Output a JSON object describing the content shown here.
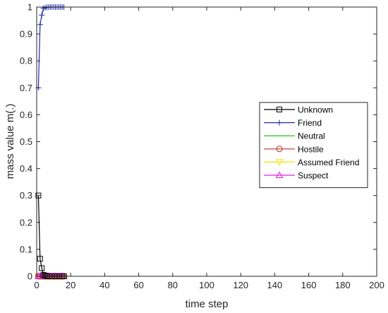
{
  "chart_data": {
    "type": "line",
    "xlabel": "time step",
    "ylabel": "mass value m(.)",
    "xlim": [
      0,
      200
    ],
    "ylim": [
      0,
      1
    ],
    "xticks": [
      0,
      20,
      40,
      60,
      80,
      100,
      120,
      140,
      160,
      180,
      200
    ],
    "yticks": [
      0,
      0.1,
      0.2,
      0.3,
      0.4,
      0.5,
      0.6,
      0.7,
      0.8,
      0.9,
      1
    ],
    "ytick_labels": [
      "0",
      "0.1",
      "0.2",
      "0.3",
      "0.4",
      "0.5",
      "0.6",
      "0.7",
      "0.8",
      "0.9",
      "1"
    ],
    "grid": false,
    "legend_position": "right",
    "x": [
      1,
      2,
      3,
      4,
      5,
      6,
      7,
      8,
      9,
      10,
      11,
      12,
      13,
      14,
      15,
      16
    ],
    "series": [
      {
        "name": "Unknown",
        "color": "#000000",
        "marker": "square",
        "values": [
          0.3,
          0.065,
          0.03,
          0.005,
          0.002,
          0.001,
          0,
          0,
          0,
          0,
          0,
          0,
          0,
          0,
          0,
          0
        ]
      },
      {
        "name": "Friend",
        "color": "#1f2aa8",
        "marker": "plus",
        "values": [
          0.7,
          0.935,
          0.97,
          0.995,
          0.998,
          0.999,
          1,
          1,
          1,
          1,
          1,
          1,
          1,
          1,
          1,
          1
        ]
      },
      {
        "name": "Neutral",
        "color": "#00c000",
        "marker": "none",
        "values": [
          0,
          0,
          0,
          0,
          0,
          0,
          0,
          0,
          0,
          0,
          0,
          0,
          0,
          0,
          0,
          0
        ]
      },
      {
        "name": "Hostile",
        "color": "#c03030",
        "marker": "circle",
        "values": [
          0,
          0,
          0,
          0,
          0,
          0,
          0,
          0,
          0,
          0,
          0,
          0,
          0,
          0,
          0,
          0
        ]
      },
      {
        "name": "Assumed Friend",
        "color": "#e8e800",
        "marker": "triangle-down",
        "values": [
          0,
          0,
          0,
          0,
          0,
          0,
          0,
          0,
          0,
          0,
          0,
          0,
          0,
          0,
          0,
          0
        ]
      },
      {
        "name": "Suspect",
        "color": "#e020e0",
        "marker": "triangle-up",
        "values": [
          0,
          0,
          0,
          0,
          0,
          0,
          0,
          0,
          0,
          0,
          0,
          0,
          0,
          0,
          0,
          0
        ]
      }
    ]
  }
}
